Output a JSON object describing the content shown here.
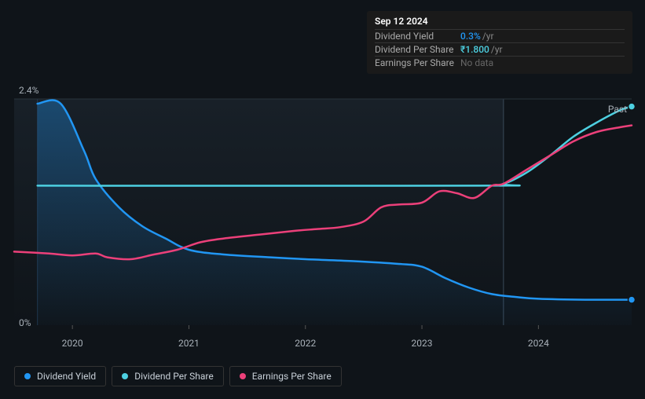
{
  "chart": {
    "type": "line",
    "background_color": "#0f1419",
    "plot_gradient_top": "#182028",
    "plot_gradient_bottom": "#0f1419",
    "grid_color": "#2a333c",
    "text_color": "#a8b0b8",
    "y_axis": {
      "min": 0,
      "max": 2.4,
      "top_label": "2.4%",
      "bottom_label": "0%"
    },
    "x_axis": {
      "min": 2019.5,
      "max": 2024.8,
      "ticks": [
        {
          "value": 2020,
          "label": "2020"
        },
        {
          "value": 2021,
          "label": "2021"
        },
        {
          "value": 2022,
          "label": "2022"
        },
        {
          "value": 2023,
          "label": "2023"
        },
        {
          "value": 2024,
          "label": "2024"
        }
      ]
    },
    "past_label": "Past",
    "highlight_x": 2023.7,
    "highlight_region_start": 2019.7,
    "highlight_fill": "#1e3a5f",
    "series": [
      {
        "id": "dividend_yield",
        "name": "Dividend Yield",
        "color": "#2196f3",
        "show_end_marker": true,
        "line_width": 2.5,
        "area_fill": true,
        "points": [
          [
            2019.7,
            2.35
          ],
          [
            2019.9,
            2.35
          ],
          [
            2020.1,
            1.85
          ],
          [
            2020.2,
            1.55
          ],
          [
            2020.4,
            1.25
          ],
          [
            2020.6,
            1.05
          ],
          [
            2020.8,
            0.92
          ],
          [
            2021.0,
            0.8
          ],
          [
            2021.3,
            0.75
          ],
          [
            2021.7,
            0.72
          ],
          [
            2022.0,
            0.7
          ],
          [
            2022.4,
            0.68
          ],
          [
            2022.8,
            0.65
          ],
          [
            2023.0,
            0.62
          ],
          [
            2023.2,
            0.5
          ],
          [
            2023.4,
            0.4
          ],
          [
            2023.6,
            0.33
          ],
          [
            2023.8,
            0.3
          ],
          [
            2024.0,
            0.28
          ],
          [
            2024.4,
            0.27
          ],
          [
            2024.8,
            0.27
          ]
        ]
      },
      {
        "id": "dividend_per_share",
        "name": "Dividend Per Share",
        "color": "#4dd0e1",
        "show_end_marker": true,
        "line_width": 2.5,
        "area_fill": false,
        "points": [
          [
            2019.7,
            1.48
          ],
          [
            2023.5,
            1.48
          ],
          [
            2023.7,
            1.5
          ],
          [
            2023.9,
            1.62
          ],
          [
            2024.1,
            1.8
          ],
          [
            2024.3,
            2.0
          ],
          [
            2024.5,
            2.15
          ],
          [
            2024.7,
            2.28
          ],
          [
            2024.8,
            2.32
          ]
        ]
      },
      {
        "id": "earnings_per_share",
        "name": "Earnings Per Share",
        "color": "#ec407a",
        "show_end_marker": false,
        "line_width": 2.5,
        "area_fill": false,
        "points": [
          [
            2019.5,
            0.78
          ],
          [
            2019.8,
            0.76
          ],
          [
            2020.0,
            0.74
          ],
          [
            2020.2,
            0.76
          ],
          [
            2020.3,
            0.72
          ],
          [
            2020.5,
            0.7
          ],
          [
            2020.7,
            0.75
          ],
          [
            2020.9,
            0.8
          ],
          [
            2021.1,
            0.88
          ],
          [
            2021.3,
            0.92
          ],
          [
            2021.6,
            0.96
          ],
          [
            2021.9,
            1.0
          ],
          [
            2022.1,
            1.02
          ],
          [
            2022.3,
            1.04
          ],
          [
            2022.5,
            1.1
          ],
          [
            2022.65,
            1.25
          ],
          [
            2022.8,
            1.28
          ],
          [
            2023.0,
            1.3
          ],
          [
            2023.15,
            1.42
          ],
          [
            2023.3,
            1.4
          ],
          [
            2023.45,
            1.35
          ],
          [
            2023.6,
            1.48
          ],
          [
            2023.7,
            1.5
          ],
          [
            2023.9,
            1.65
          ],
          [
            2024.1,
            1.8
          ],
          [
            2024.3,
            1.95
          ],
          [
            2024.5,
            2.05
          ],
          [
            2024.7,
            2.1
          ],
          [
            2024.8,
            2.12
          ]
        ]
      }
    ]
  },
  "tooltip": {
    "date": "Sep 12 2024",
    "rows": [
      {
        "label": "Dividend Yield",
        "value": "0.3%",
        "value_color": "#2196f3",
        "suffix": "/yr"
      },
      {
        "label": "Dividend Per Share",
        "value": "₹1.800",
        "value_color": "#4dd0e1",
        "suffix": "/yr"
      },
      {
        "label": "Earnings Per Share",
        "value": "No data",
        "value_color": "#666666",
        "suffix": ""
      }
    ]
  },
  "legend": [
    {
      "label": "Dividend Yield",
      "color": "#2196f3"
    },
    {
      "label": "Dividend Per Share",
      "color": "#4dd0e1"
    },
    {
      "label": "Earnings Per Share",
      "color": "#ec407a"
    }
  ]
}
